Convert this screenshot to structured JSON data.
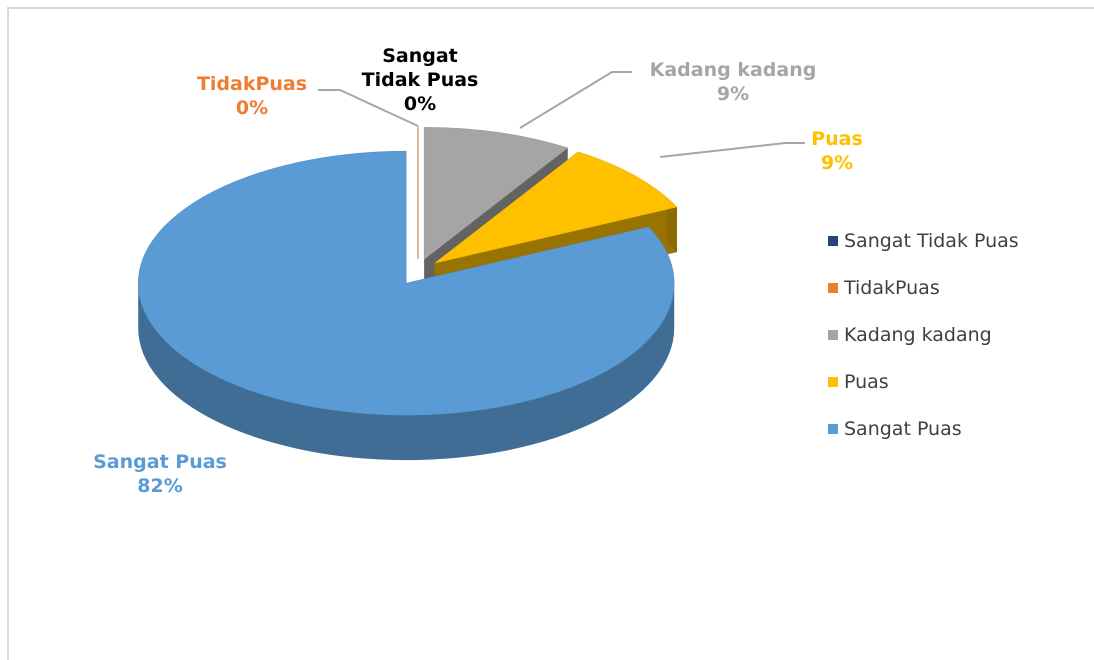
{
  "chart_data": {
    "type": "pie3d",
    "categories": [
      "Sangat Tidak Puas",
      "TidakPuas",
      "Kadang kadang",
      "Puas",
      "Sangat Puas"
    ],
    "values": [
      0,
      0,
      9,
      9,
      82
    ],
    "value_labels": [
      "0%",
      "0%",
      "9%",
      "9%",
      "82%"
    ],
    "colors": [
      "#264478",
      "#ed7d31",
      "#a5a5a5",
      "#ffc000",
      "#5b9bd5"
    ],
    "label_colors": [
      "#000000",
      "#ed7d31",
      "#a5a5a5",
      "#ffc000",
      "#5b9bd5"
    ],
    "legend": "right"
  }
}
